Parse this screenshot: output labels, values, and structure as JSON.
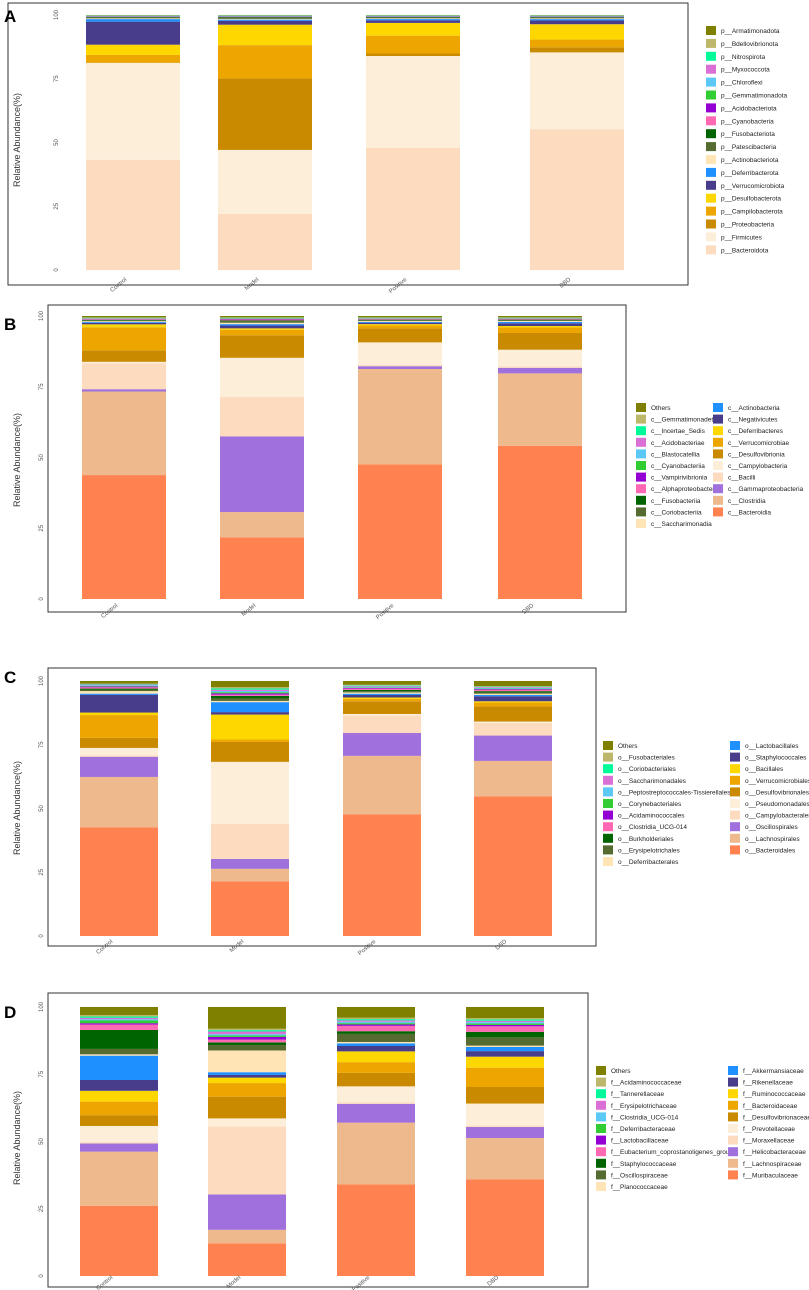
{
  "chart_data": [
    {
      "type": "bar",
      "stacked": true,
      "panel_label": "A",
      "ylabel": "Relative Abundance(%)",
      "ylim": [
        0,
        100
      ],
      "y_ticks": [
        "0",
        "25",
        "50",
        "75",
        "100"
      ],
      "categories": [
        "Control",
        "Model",
        "Positive",
        "DBD"
      ],
      "legend_position": "right",
      "series": [
        {
          "name": "p__Bacteroidota",
          "color": "#FDDBBF",
          "values": [
            43,
            22,
            48,
            55
          ]
        },
        {
          "name": "p__Firmicutes",
          "color": "#FDEEDA",
          "values": [
            38,
            25,
            36,
            30
          ]
        },
        {
          "name": "p__Proteobacteria",
          "color": "#C98A00",
          "values": [
            0,
            28,
            1,
            2
          ]
        },
        {
          "name": "p__Campilobacterota",
          "color": "#EDA600",
          "values": [
            3,
            13,
            7,
            3
          ]
        },
        {
          "name": "p__Desulfobacterota",
          "color": "#FFD700",
          "values": [
            4,
            8,
            5,
            6
          ]
        },
        {
          "name": "p__Verrucomicrobiota",
          "color": "#483D8B",
          "values": [
            9,
            1.5,
            1,
            1.5
          ]
        },
        {
          "name": "p__Deferribacterota",
          "color": "#1E90FF",
          "values": [
            1,
            0.5,
            0.5,
            0.5
          ]
        },
        {
          "name": "p__Actinobacteriota",
          "color": "#FFE4B5",
          "values": [
            0.3,
            0.3,
            0.3,
            0.3
          ]
        },
        {
          "name": "p__Patescibacteria",
          "color": "#556B2F",
          "values": [
            0.3,
            0.5,
            0.3,
            0.3
          ]
        },
        {
          "name": "p__Fusobacteriota",
          "color": "#006400",
          "values": [
            0.2,
            0.2,
            0.2,
            0.2
          ]
        },
        {
          "name": "p__Cyanobacteria",
          "color": "#FF69B4",
          "values": [
            0.1,
            0.1,
            0.1,
            0.1
          ]
        },
        {
          "name": "p__Acidobacteriota",
          "color": "#9400D3",
          "values": [
            0.1,
            0.1,
            0.1,
            0.1
          ]
        },
        {
          "name": "p__Gemmatimonadota",
          "color": "#32CD32",
          "values": [
            0.1,
            0.1,
            0.1,
            0.1
          ]
        },
        {
          "name": "p__Chloroflexi",
          "color": "#5BC8F5",
          "values": [
            0.1,
            0.1,
            0.1,
            0.1
          ]
        },
        {
          "name": "p__Myxococcota",
          "color": "#DA70D6",
          "values": [
            0.1,
            0.1,
            0.1,
            0.1
          ]
        },
        {
          "name": "p__Nitrospirota",
          "color": "#00FA9A",
          "values": [
            0.1,
            0.1,
            0.1,
            0.1
          ]
        },
        {
          "name": "p__Bdellovibrionota",
          "color": "#BDB76B",
          "values": [
            0.1,
            0.1,
            0.1,
            0.1
          ]
        },
        {
          "name": "p__Armatimonadota",
          "color": "#808000",
          "values": [
            0.1,
            0.1,
            0.1,
            0.1
          ]
        }
      ]
    },
    {
      "type": "bar",
      "stacked": true,
      "panel_label": "B",
      "ylabel": "Relative Abundance(%)",
      "ylim": [
        0,
        100
      ],
      "y_ticks": [
        "0",
        "25",
        "50",
        "75",
        "100"
      ],
      "categories": [
        "Control",
        "Model",
        "Positive",
        "DBD"
      ],
      "legend_position": "right",
      "legend_columns": 2,
      "series": [
        {
          "name": "c__Bacteroidia",
          "color": "#FF8250",
          "values": [
            43,
            22,
            48,
            55
          ]
        },
        {
          "name": "c__Clostridia",
          "color": "#EEB98C",
          "values": [
            29,
            9,
            34,
            26
          ]
        },
        {
          "name": "c__Gammaproteobacteria",
          "color": "#A070DC",
          "values": [
            0.8,
            27,
            1,
            2
          ]
        },
        {
          "name": "c__Bacilli",
          "color": "#FDDBBF",
          "values": [
            9,
            14,
            0.5,
            0.5
          ]
        },
        {
          "name": "c__Campylobacteria",
          "color": "#FDEEDA",
          "values": [
            0.5,
            14,
            8,
            6
          ]
        },
        {
          "name": "c__Desulfovibrionia",
          "color": "#C98A00",
          "values": [
            4,
            8,
            5,
            6
          ]
        },
        {
          "name": "c__Verrucomicrobiae",
          "color": "#EDA600",
          "values": [
            8,
            2,
            1,
            2
          ]
        },
        {
          "name": "c__Deferribacteres",
          "color": "#FFD700",
          "values": [
            1,
            0.5,
            0.5,
            0.5
          ]
        },
        {
          "name": "c__Negativicutes",
          "color": "#483D8B",
          "values": [
            0.5,
            1,
            0.5,
            1
          ]
        },
        {
          "name": "c__Actinobacteria",
          "color": "#1E90FF",
          "values": [
            0.3,
            0.5,
            0.3,
            0.5
          ]
        },
        {
          "name": "c__Saccharimonadia",
          "color": "#FFE4B5",
          "values": [
            0.3,
            0.5,
            0.3,
            0.3
          ]
        },
        {
          "name": "c__Coriobacteriia",
          "color": "#556B2F",
          "values": [
            0.3,
            0.5,
            0.3,
            0.3
          ]
        },
        {
          "name": "c__Fusobacteriia",
          "color": "#006400",
          "values": [
            0.2,
            0.3,
            0.2,
            0.2
          ]
        },
        {
          "name": "c__Alphaproteobacteria",
          "color": "#FF69B4",
          "values": [
            0.2,
            0.3,
            0.2,
            0.2
          ]
        },
        {
          "name": "c__Vampirivibrionia",
          "color": "#9400D3",
          "values": [
            0.1,
            0.2,
            0.1,
            0.1
          ]
        },
        {
          "name": "c__Cyanobacteriia",
          "color": "#32CD32",
          "values": [
            0.1,
            0.2,
            0.1,
            0.1
          ]
        },
        {
          "name": "c__Blastocatellia",
          "color": "#5BC8F5",
          "values": [
            0.1,
            0.1,
            0.1,
            0.1
          ]
        },
        {
          "name": "c__Acidobacteriae",
          "color": "#DA70D6",
          "values": [
            0.1,
            0.1,
            0.1,
            0.1
          ]
        },
        {
          "name": "c__Incertae_Sedis",
          "color": "#00FA9A",
          "values": [
            0.1,
            0.1,
            0.1,
            0.1
          ]
        },
        {
          "name": "c__Gemmatimonadetes",
          "color": "#BDB76B",
          "values": [
            0.1,
            0.1,
            0.1,
            0.1
          ]
        },
        {
          "name": "Others",
          "color": "#808000",
          "values": [
            0.5,
            0.5,
            0.5,
            0.5
          ]
        }
      ]
    },
    {
      "type": "bar",
      "stacked": true,
      "panel_label": "C",
      "ylabel": "Relative Abundance(%)",
      "ylim": [
        0,
        100
      ],
      "y_ticks": [
        "0",
        "25",
        "50",
        "75",
        "100"
      ],
      "categories": [
        "Control",
        "Model",
        "Positive",
        "DBD"
      ],
      "legend_position": "right",
      "legend_columns": 2,
      "series": [
        {
          "name": "o__Bacteroidales",
          "color": "#FF8250",
          "values": [
            43,
            22,
            48,
            55
          ]
        },
        {
          "name": "o__Lachnospirales",
          "color": "#EEB98C",
          "values": [
            20,
            5,
            23,
            14
          ]
        },
        {
          "name": "o__Oscillospirales",
          "color": "#A070DC",
          "values": [
            8,
            4,
            9,
            10
          ]
        },
        {
          "name": "o__Campylobacterales",
          "color": "#FDDBBF",
          "values": [
            0.5,
            14,
            7,
            5
          ]
        },
        {
          "name": "o__Pseudomonadales",
          "color": "#FDEEDA",
          "values": [
            3,
            25,
            0.5,
            0.5
          ]
        },
        {
          "name": "o__Desulfovibrionales",
          "color": "#C98A00",
          "values": [
            4,
            8,
            5,
            6
          ]
        },
        {
          "name": "o__Verrucomicrobiales",
          "color": "#EDA600",
          "values": [
            9,
            1,
            1,
            1.5
          ]
        },
        {
          "name": "o__Bacillales",
          "color": "#FFD700",
          "values": [
            1,
            10,
            0.5,
            0.5
          ]
        },
        {
          "name": "o__Staphylococcales",
          "color": "#483D8B",
          "values": [
            7,
            1,
            1,
            2
          ]
        },
        {
          "name": "o__Lactobacillales",
          "color": "#1E90FF",
          "values": [
            0.5,
            4,
            0.5,
            0.5
          ]
        },
        {
          "name": "o__Deferribacterales",
          "color": "#FFE4B5",
          "values": [
            1,
            0.5,
            0.5,
            0.5
          ]
        },
        {
          "name": "o__Erysipelotrichales",
          "color": "#556B2F",
          "values": [
            0.5,
            1,
            0.5,
            0.5
          ]
        },
        {
          "name": "o__Burkholderiales",
          "color": "#006400",
          "values": [
            0.5,
            1,
            0.5,
            0.5
          ]
        },
        {
          "name": "o__Clostridia_UCG-014",
          "color": "#FF69B4",
          "values": [
            0.5,
            0.5,
            0.5,
            0.5
          ]
        },
        {
          "name": "o__Acidaminococcales",
          "color": "#9400D3",
          "values": [
            0.3,
            0.5,
            0.3,
            0.3
          ]
        },
        {
          "name": "o__Corynebacteriales",
          "color": "#32CD32",
          "values": [
            0.2,
            0.5,
            0.2,
            0.2
          ]
        },
        {
          "name": "o__Peptostreptococcales-Tissierellales",
          "color": "#5BC8F5",
          "values": [
            0.3,
            0.5,
            0.3,
            0.3
          ]
        },
        {
          "name": "o__Saccharimonadales",
          "color": "#DA70D6",
          "values": [
            0.3,
            0.5,
            0.3,
            0.3
          ]
        },
        {
          "name": "o__Coriobacteriales",
          "color": "#00FA9A",
          "values": [
            0.2,
            0.5,
            0.2,
            0.2
          ]
        },
        {
          "name": "o__Fusobacteriales",
          "color": "#BDB76B",
          "values": [
            0.2,
            0.5,
            0.2,
            0.2
          ]
        },
        {
          "name": "Others",
          "color": "#808000",
          "values": [
            1,
            2.5,
            1.5,
            2
          ]
        }
      ]
    },
    {
      "type": "bar",
      "stacked": true,
      "panel_label": "D",
      "ylabel": "Relative Abundance(%)",
      "ylim": [
        0,
        100
      ],
      "y_ticks": [
        "0",
        "25",
        "50",
        "75",
        "100"
      ],
      "categories": [
        "Control",
        "Model",
        "Positive",
        "DBD"
      ],
      "legend_position": "right",
      "legend_columns": 2,
      "series": [
        {
          "name": "f__Muribaculaceae",
          "color": "#FF8250",
          "values": [
            26,
            12,
            34,
            35
          ]
        },
        {
          "name": "f__Lachnospiraceae",
          "color": "#EEB98C",
          "values": [
            20,
            5,
            23,
            15
          ]
        },
        {
          "name": "f__Helicobacteraceae",
          "color": "#A070DC",
          "values": [
            3,
            13,
            7,
            4
          ]
        },
        {
          "name": "f__Moraxellaceae",
          "color": "#FDDBBF",
          "values": [
            0.5,
            25,
            0.5,
            0.5
          ]
        },
        {
          "name": "f__Prevotellaceae",
          "color": "#FDEEDA",
          "values": [
            6,
            3,
            6,
            8
          ]
        },
        {
          "name": "f__Desulfovibrionaceae",
          "color": "#C98A00",
          "values": [
            4,
            8,
            5,
            6
          ]
        },
        {
          "name": "f__Bacteroidaceae",
          "color": "#EDA600",
          "values": [
            5,
            5,
            4,
            7
          ]
        },
        {
          "name": "f__Ruminococcaceae",
          "color": "#FFD700",
          "values": [
            4,
            2,
            4,
            4
          ]
        },
        {
          "name": "f__Rikenellaceae",
          "color": "#483D8B",
          "values": [
            4,
            1,
            2,
            2
          ]
        },
        {
          "name": "f__Akkermansiaceae",
          "color": "#1E90FF",
          "values": [
            9,
            1,
            1,
            1.5
          ]
        },
        {
          "name": "f__Planococcaceae",
          "color": "#FFE4B5",
          "values": [
            0.5,
            8,
            0.5,
            0.5
          ]
        },
        {
          "name": "f__Oscillospiraceae",
          "color": "#556B2F",
          "values": [
            2,
            2,
            3,
            3
          ]
        },
        {
          "name": "f__Staphylococcaceae",
          "color": "#006400",
          "values": [
            7,
            1,
            1,
            2
          ]
        },
        {
          "name": "f__Eubacterium_coprostanoligenes_group",
          "color": "#FF69B4",
          "values": [
            2,
            1,
            2,
            2
          ]
        },
        {
          "name": "f__Lactobacillaceae",
          "color": "#9400D3",
          "values": [
            0.5,
            1,
            0.5,
            0.5
          ]
        },
        {
          "name": "f__Deferribacteraceae",
          "color": "#32CD32",
          "values": [
            1,
            0.5,
            0.5,
            0.5
          ]
        },
        {
          "name": "f__Clostridia_UCG-014",
          "color": "#5BC8F5",
          "values": [
            0.5,
            0.5,
            0.5,
            0.5
          ]
        },
        {
          "name": "f__Erysipelotrichaceae",
          "color": "#DA70D6",
          "values": [
            0.5,
            1,
            0.5,
            0.5
          ]
        },
        {
          "name": "f__Tannerellaceae",
          "color": "#00FA9A",
          "values": [
            0.5,
            0.5,
            0.5,
            0.5
          ]
        },
        {
          "name": "f__Acidaminococcaceae",
          "color": "#BDB76B",
          "values": [
            0.5,
            0.5,
            0.5,
            0.5
          ]
        },
        {
          "name": "Others",
          "color": "#808000",
          "values": [
            3,
            8,
            4,
            4
          ]
        }
      ]
    }
  ]
}
